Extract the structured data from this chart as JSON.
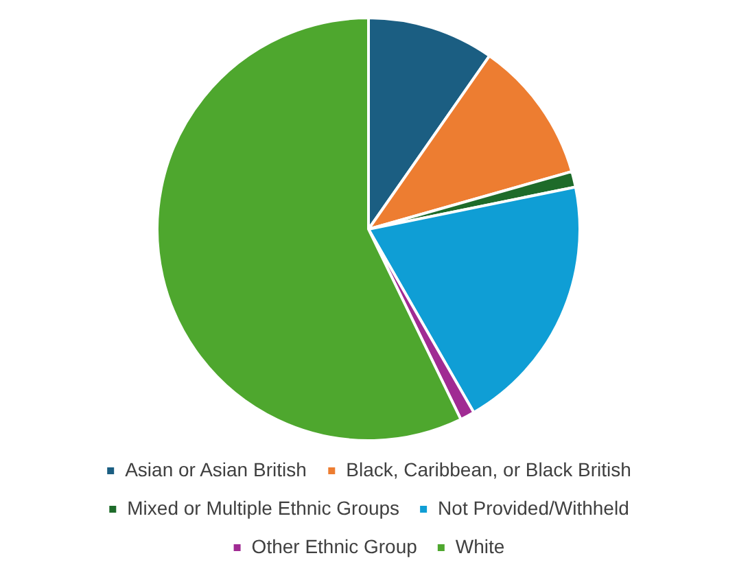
{
  "chart_data": {
    "type": "pie",
    "categories": [
      "Asian or Asian British",
      "Black, Caribbean, or Black British",
      "Mixed or Multiple Ethnic Groups",
      "Not Provided/Withheld",
      "Other Ethnic Group",
      "White"
    ],
    "values": [
      9.7,
      10.9,
      1.2,
      19.9,
      1.1,
      57.2
    ],
    "colors": [
      "#1b5e82",
      "#ed7d31",
      "#1e6b2a",
      "#0f9ed5",
      "#a02b93",
      "#4ea72e"
    ],
    "legend": "bottom"
  }
}
